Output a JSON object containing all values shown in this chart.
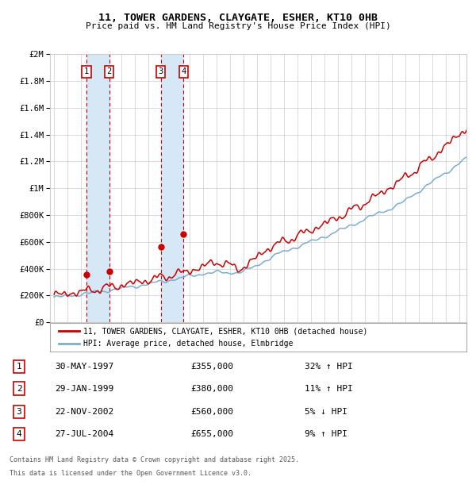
{
  "title1": "11, TOWER GARDENS, CLAYGATE, ESHER, KT10 0HB",
  "title2": "Price paid vs. HM Land Registry's House Price Index (HPI)",
  "ylabel_ticks": [
    "£0",
    "£200K",
    "£400K",
    "£600K",
    "£800K",
    "£1M",
    "£1.2M",
    "£1.4M",
    "£1.6M",
    "£1.8M",
    "£2M"
  ],
  "ytick_values": [
    0,
    200000,
    400000,
    600000,
    800000,
    1000000,
    1200000,
    1400000,
    1600000,
    1800000,
    2000000
  ],
  "transactions": [
    {
      "num": 1,
      "date": "30-MAY-1997",
      "price": "£355,000",
      "pct": "32%",
      "dir": "↑",
      "year": 1997.41,
      "dot_price": 355000
    },
    {
      "num": 2,
      "date": "29-JAN-1999",
      "price": "£380,000",
      "pct": "11%",
      "dir": "↑",
      "year": 1999.08,
      "dot_price": 380000
    },
    {
      "num": 3,
      "date": "22-NOV-2002",
      "price": "£560,000",
      "pct": "5%",
      "dir": "↓",
      "year": 2002.89,
      "dot_price": 560000
    },
    {
      "num": 4,
      "date": "27-JUL-2004",
      "price": "£655,000",
      "pct": "9%",
      "dir": "↑",
      "year": 2004.57,
      "dot_price": 655000
    }
  ],
  "legend_house": "11, TOWER GARDENS, CLAYGATE, ESHER, KT10 0HB (detached house)",
  "legend_hpi": "HPI: Average price, detached house, Elmbridge",
  "footnote1": "Contains HM Land Registry data © Crown copyright and database right 2025.",
  "footnote2": "This data is licensed under the Open Government Licence v3.0.",
  "house_color": "#cc0000",
  "hpi_color": "#7aadd4",
  "bg_color": "#ffffff",
  "grid_color": "#cccccc",
  "box_shade": "#d6e8f5"
}
